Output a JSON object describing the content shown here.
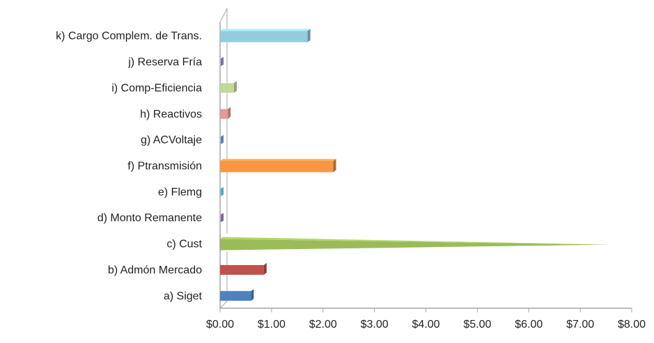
{
  "chart_data": {
    "type": "bar",
    "orientation": "horizontal",
    "style": "3d-cone",
    "title": "",
    "xlabel": "",
    "ylabel": "",
    "categories": [
      "a) Siget",
      "b) Admón Mercado",
      "c) Cust",
      "d) Monto Remanente",
      "e) Flemg",
      "f) Ptransmisión",
      "g) ACVoltaje",
      "h) Reactivos",
      "i) Comp-Eficiencia",
      "j) Reserva Fría",
      "k) Cargo Complem. de Trans."
    ],
    "values": [
      0.6,
      0.85,
      7.55,
      0.05,
      0.05,
      2.2,
      0.05,
      0.15,
      0.27,
      0.05,
      1.7
    ],
    "colors": [
      "#4f81bd",
      "#c0504d",
      "#9bbb59",
      "#8064a2",
      "#4bacc6",
      "#f79646",
      "#5b7fbf",
      "#e39a9a",
      "#c4d79b",
      "#7f6fa8",
      "#93cddd"
    ],
    "xlim": [
      0,
      8
    ],
    "x_ticks": [
      "$0.00",
      "$1.00",
      "$2.00",
      "$3.00",
      "$4.00",
      "$5.00",
      "$6.00",
      "$7.00",
      "$8.00"
    ],
    "grid": false,
    "legend": "none"
  }
}
